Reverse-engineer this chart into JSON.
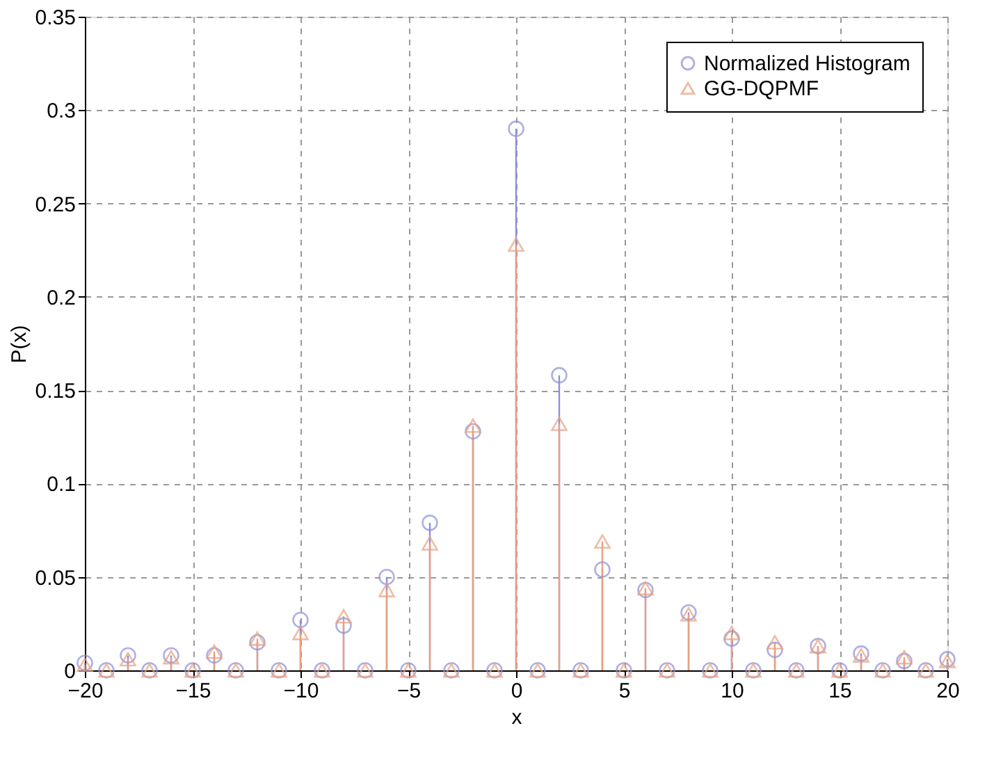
{
  "chart_data": {
    "type": "lollipop",
    "xlabel": "x",
    "ylabel": "P(x)",
    "x": [
      -20,
      -19,
      -18,
      -17,
      -16,
      -15,
      -14,
      -13,
      -12,
      -11,
      -10,
      -9,
      -8,
      -7,
      -6,
      -5,
      -4,
      -3,
      -2,
      -1,
      0,
      1,
      2,
      3,
      4,
      5,
      6,
      7,
      8,
      9,
      10,
      11,
      12,
      13,
      14,
      15,
      16,
      17,
      18,
      19,
      20
    ],
    "series": [
      {
        "name": "Normalized Histogram",
        "color": "#8f8fd8",
        "marker": "circle",
        "values": [
          0.004,
          0,
          0.008,
          0,
          0.008,
          0,
          0.008,
          0,
          0.015,
          0,
          0.027,
          0,
          0.024,
          0,
          0.05,
          0,
          0.079,
          0,
          0.128,
          0,
          0.29,
          0,
          0.158,
          0,
          0.054,
          0,
          0.043,
          0,
          0.031,
          0,
          0.017,
          0,
          0.011,
          0,
          0.013,
          0,
          0.009,
          0,
          0.005,
          0,
          0.006
        ]
      },
      {
        "name": "GG-DQPMF",
        "color": "#e8a080",
        "marker": "triangle",
        "values": [
          0.003,
          0,
          0.006,
          0,
          0.007,
          0,
          0.01,
          0,
          0.017,
          0,
          0.02,
          0,
          0.029,
          0,
          0.043,
          0,
          0.068,
          0,
          0.131,
          0,
          0.228,
          0,
          0.132,
          0,
          0.069,
          0,
          0.044,
          0,
          0.03,
          0,
          0.02,
          0,
          0.015,
          0,
          0.013,
          0,
          0.008,
          0,
          0.007,
          0,
          0.005
        ]
      }
    ],
    "xlim": [
      -20,
      20
    ],
    "xticks": [
      -20,
      -15,
      -10,
      -5,
      0,
      5,
      10,
      15,
      20
    ],
    "ylim": [
      0,
      0.35
    ],
    "yticks": [
      0,
      0.05,
      0.1,
      0.15,
      0.2,
      0.25,
      0.3,
      0.35
    ],
    "grid": true,
    "legend": "top right"
  }
}
